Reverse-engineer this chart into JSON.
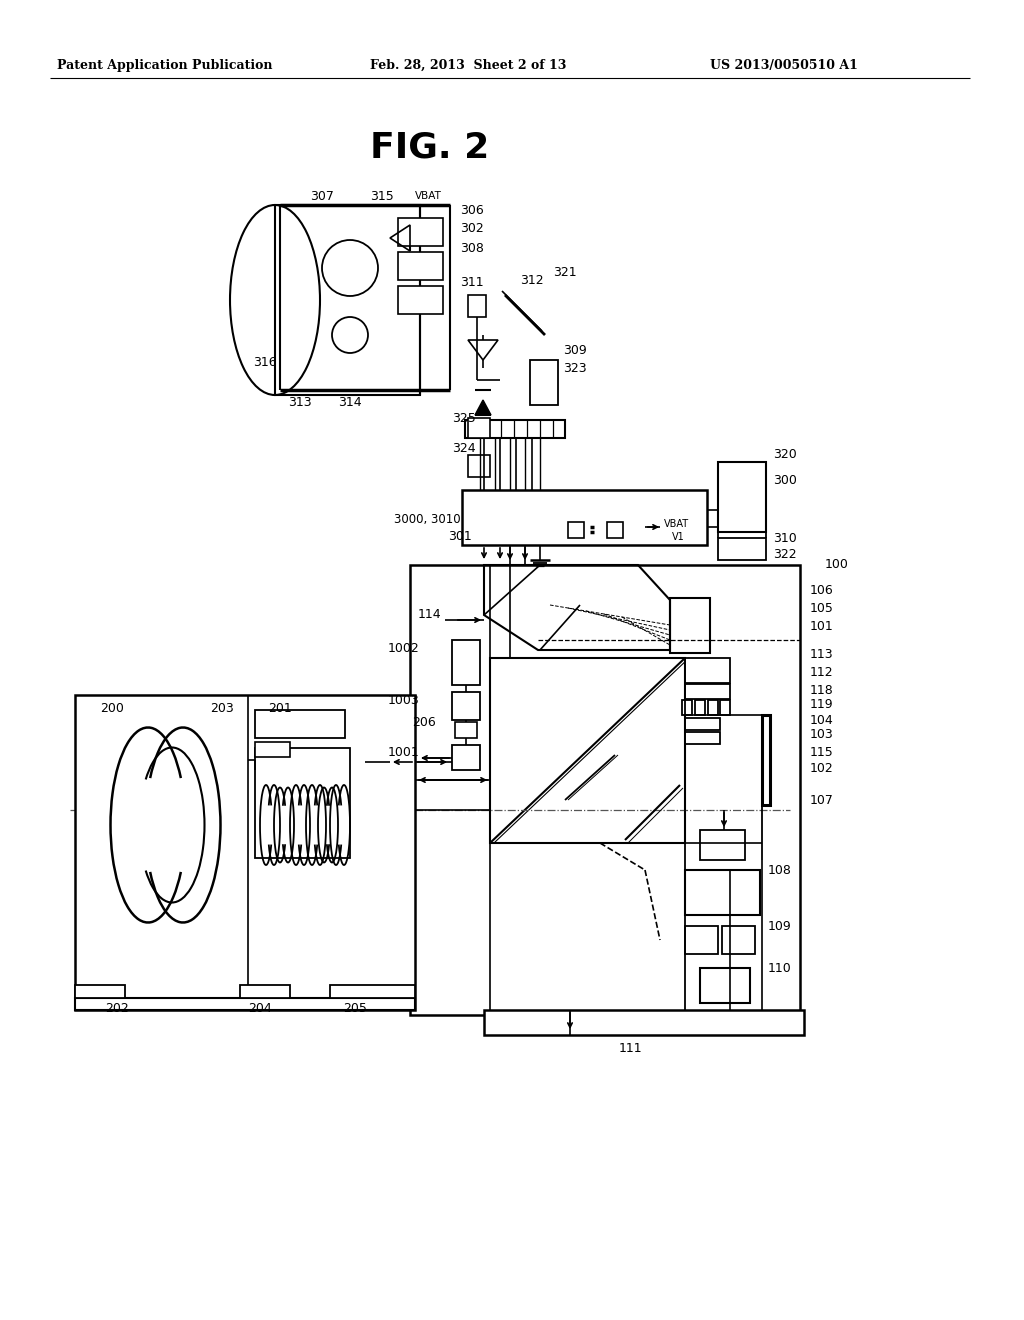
{
  "title": "FIG. 2",
  "header_left": "Patent Application Publication",
  "header_mid": "Feb. 28, 2013  Sheet 2 of 13",
  "header_right": "US 2013/0050510 A1",
  "bg_color": "#ffffff",
  "fig_width": 10.24,
  "fig_height": 13.2
}
